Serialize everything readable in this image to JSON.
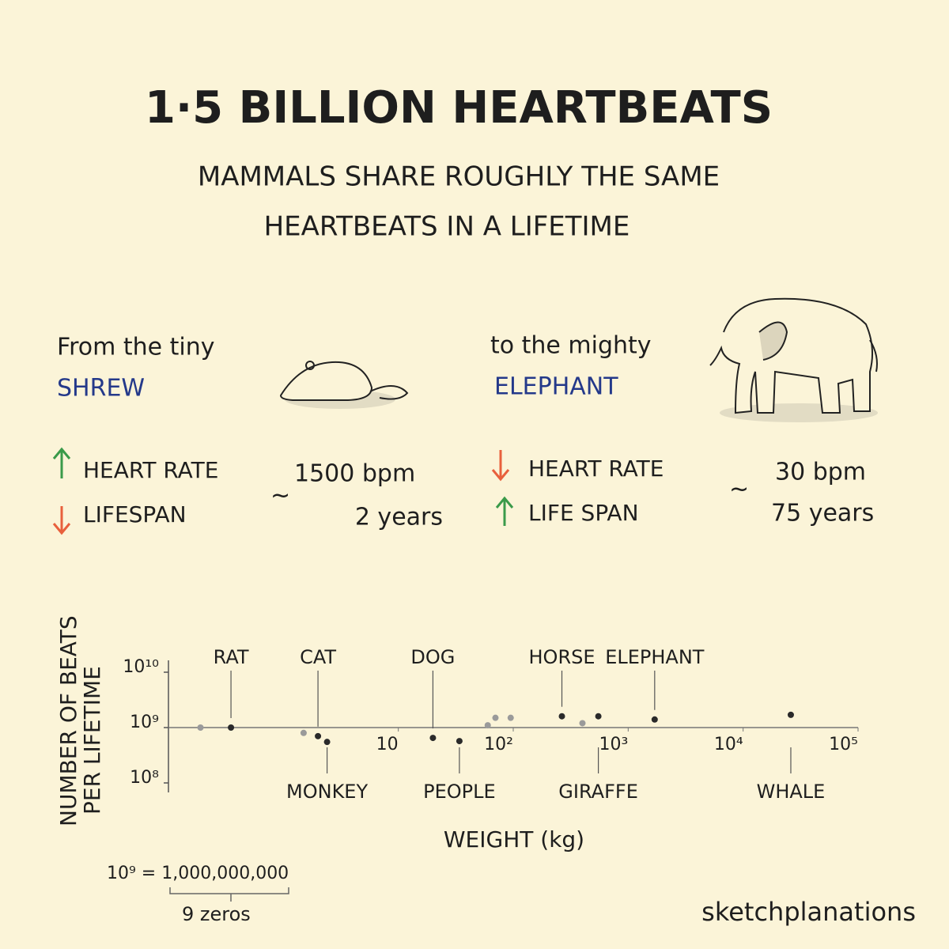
{
  "header": {
    "title": "1·5 BILLION HEARTBEATS",
    "subtitle": [
      "MAMMALS SHARE ROUGHLY THE SAME",
      "HEARTBEATS IN A LIFETIME"
    ]
  },
  "shrew": {
    "intro": "From the tiny",
    "name": "SHREW",
    "heart_rate": "HEART RATE",
    "lifespan": "LIFESPAN",
    "approx": "~",
    "bpm": "1500 bpm",
    "years": "2 years"
  },
  "elephant": {
    "intro": "to the mighty",
    "name": "ELEPHANT",
    "heart_rate": "HEART RATE",
    "lifespan": "LIFE SPAN",
    "approx": "~",
    "bpm": "30 bpm",
    "years": "75 years"
  },
  "chart_data": {
    "type": "scatter",
    "x_label": "WEIGHT (kg)",
    "y_label": [
      "NUMBER OF BEATS",
      "PER LIFETIME"
    ],
    "x": [
      0.19,
      0.35,
      1.5,
      2,
      2.4,
      20,
      34,
      60,
      70,
      95,
      265,
      400,
      550,
      1700,
      26000
    ],
    "values": [
      1000000000,
      1000000000,
      800000000,
      700000000,
      550000000,
      650000000,
      570000000,
      1100000000,
      1500000000,
      1500000000,
      1600000000,
      1200000000,
      1600000000,
      1400000000,
      1700000000
    ],
    "labels": [
      null,
      "RAT",
      null,
      "CAT",
      "MONKEY",
      "DOG",
      "PEOPLE",
      null,
      null,
      null,
      "HORSE",
      null,
      "GIRAFFE",
      "ELEPHANT",
      "WHALE"
    ],
    "x_log": true,
    "y_log": true,
    "xlim": [
      0.1,
      100000
    ],
    "ylim": [
      100000000,
      10000000000
    ],
    "xticks": [
      10,
      {
        "value": 100,
        "label": "10²"
      },
      {
        "value": 1000,
        "label": "10³"
      },
      {
        "value": 10000,
        "label": "10⁴"
      },
      {
        "value": 100000,
        "label": "10⁵"
      }
    ],
    "yticks": [
      {
        "value": 100000000,
        "label": "10⁸"
      },
      {
        "value": 1000000000,
        "label": "10⁹"
      },
      {
        "value": 10000000000,
        "label": "10¹⁰"
      }
    ],
    "color": "#2a2a2a",
    "label_color": "#24398a"
  },
  "footnote": {
    "equation": "10⁹ = 1,000,000,000",
    "zeros": "9 zeros"
  },
  "brand": "sketchplanations"
}
